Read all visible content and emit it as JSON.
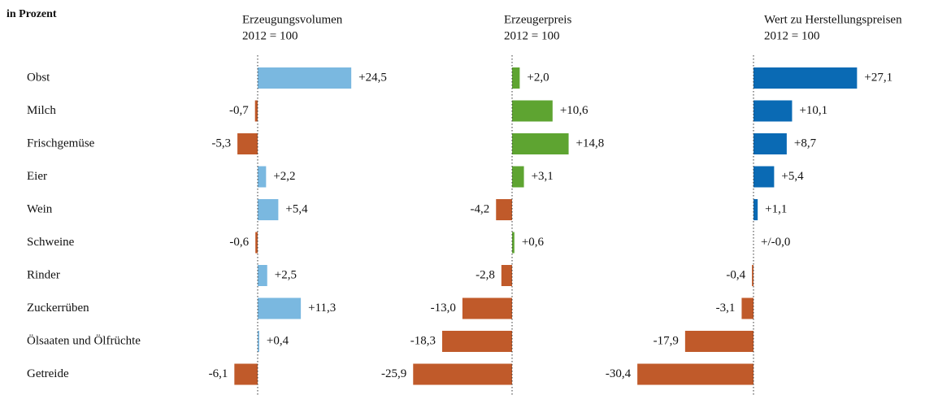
{
  "unit_label": "in Prozent",
  "chart_data": [
    {
      "type": "hbar",
      "title": "Erzeugungsvolumen",
      "subtitle": "2012 = 100",
      "categories": [
        "Obst",
        "Milch",
        "Frischgemüse",
        "Eier",
        "Wein",
        "Schweine",
        "Rinder",
        "Zuckerrüben",
        "Ölsaaten und Ölfrüchte",
        "Getreide"
      ],
      "values": [
        24.5,
        -0.7,
        -5.3,
        2.2,
        5.4,
        -0.6,
        2.5,
        11.3,
        0.4,
        -6.1
      ],
      "value_labels": [
        "+24,5",
        "-0,7",
        "-5,3",
        "+2,2",
        "+5,4",
        "-0,6",
        "+2,5",
        "+11,3",
        "+0,4",
        "-6,1"
      ],
      "color": "#7ab8e0",
      "negative_color": "#c05a2a"
    },
    {
      "type": "hbar",
      "title": "Erzeugerpreis",
      "subtitle": "2012 = 100",
      "values": [
        2.0,
        10.6,
        14.8,
        3.1,
        -4.2,
        0.6,
        -2.8,
        -13.0,
        -18.3,
        -25.9
      ],
      "value_labels": [
        "+2,0",
        "+10,6",
        "+14,8",
        "+3,1",
        "-4,2",
        "+0,6",
        "-2,8",
        "-13,0",
        "-18,3",
        "-25,9"
      ],
      "color": "#5ea431",
      "negative_color": "#c05a2a"
    },
    {
      "type": "hbar",
      "title": "Wert zu Herstellungspreisen",
      "subtitle": "2012 = 100",
      "values": [
        27.1,
        10.1,
        8.7,
        5.4,
        1.1,
        0.0,
        -0.4,
        -3.1,
        -17.9,
        -30.4
      ],
      "value_labels": [
        "+27,1",
        "+10,1",
        "+8,7",
        "+5,4",
        "+1,1",
        "+/-0,0",
        "-0,4",
        "-3,1",
        "-17,9",
        "-30,4"
      ],
      "color": "#0a6ab4",
      "negative_color": "#c05a2a"
    }
  ]
}
